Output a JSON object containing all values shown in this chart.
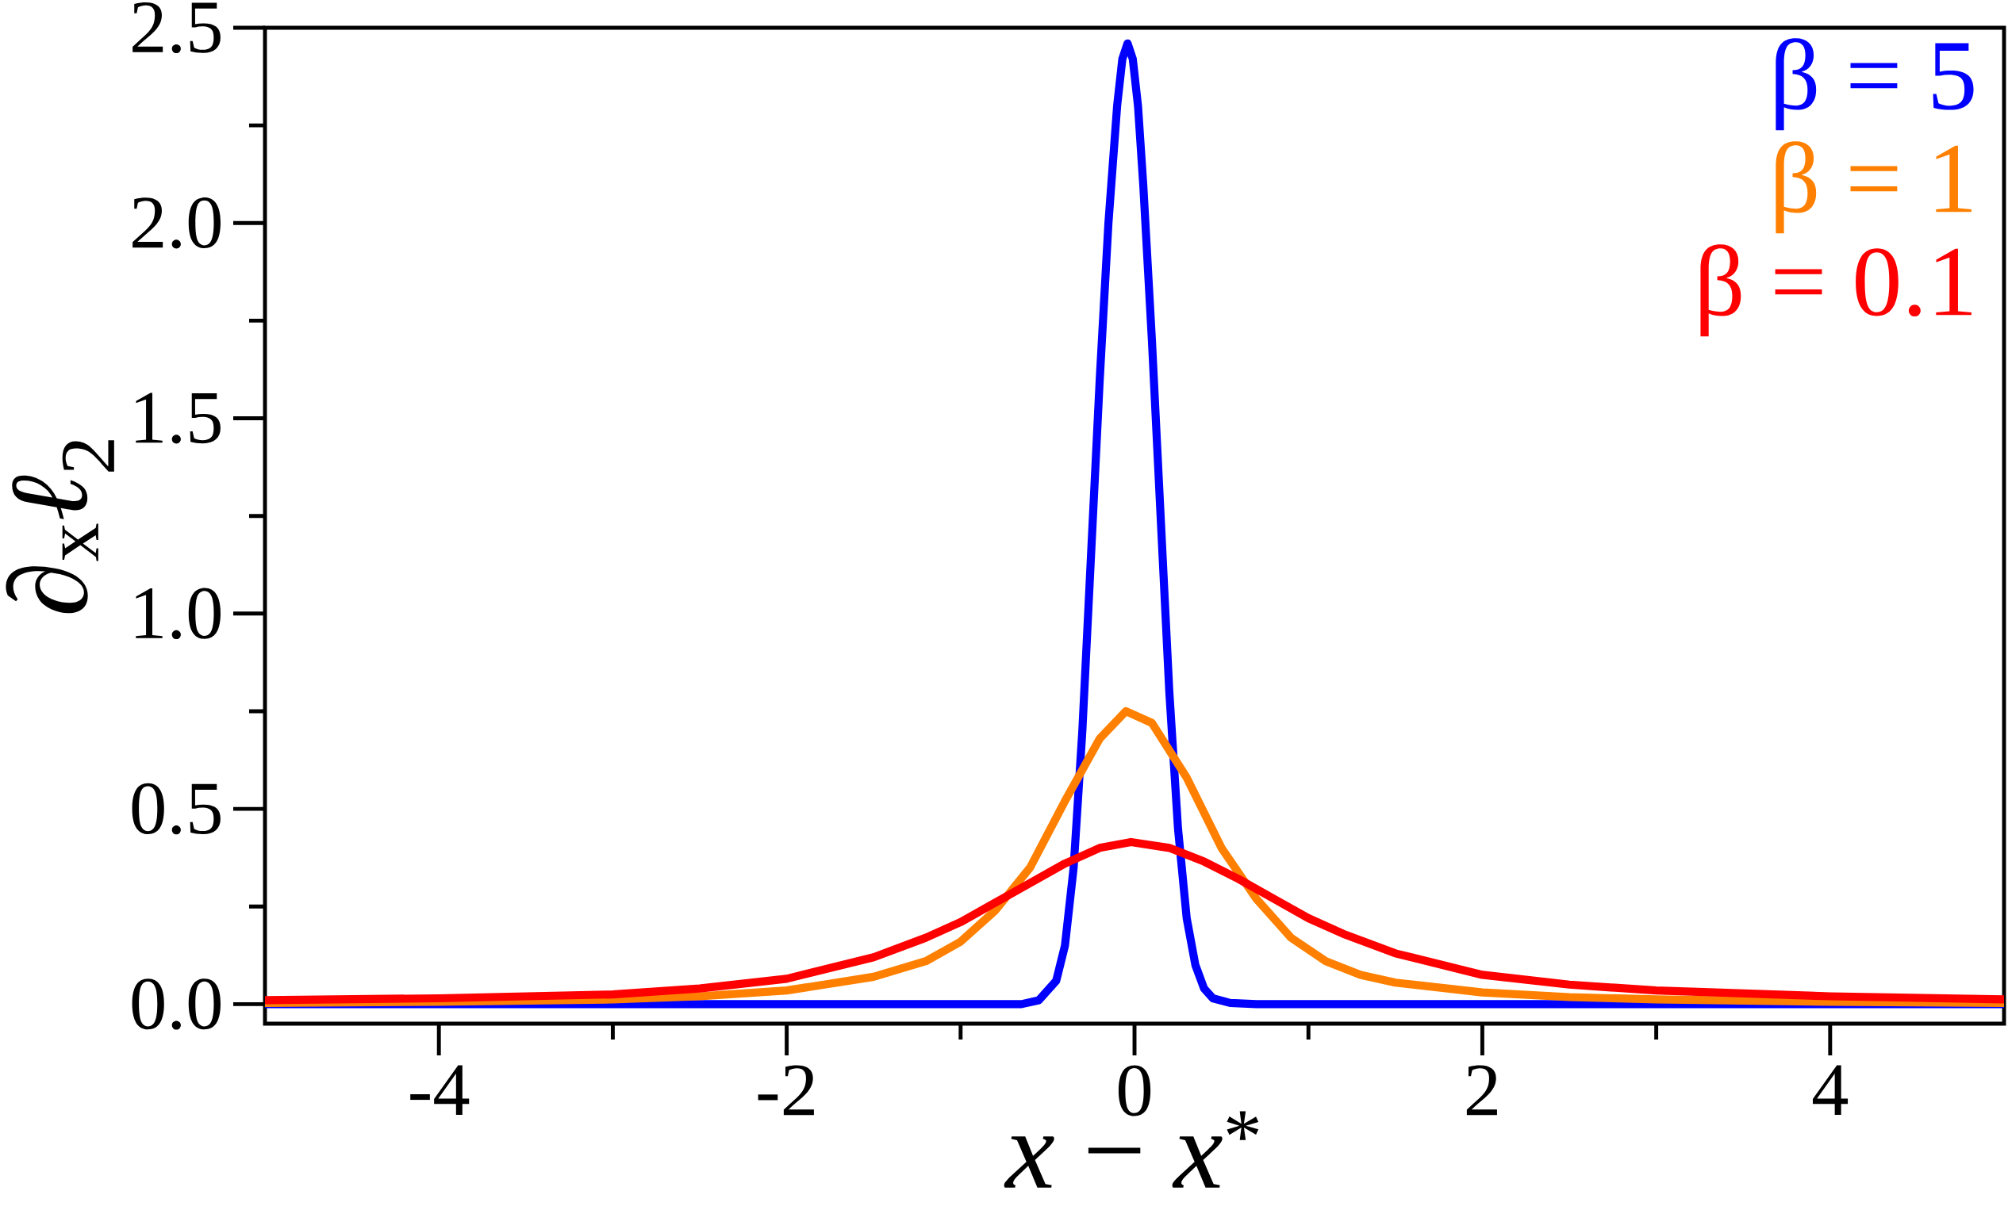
{
  "chart_data": {
    "type": "line",
    "xlabel": "*x* − *x*$^{*}$",
    "ylabel": "∂$_{x}$*ℓ*$_{2}$",
    "xlim": [
      -5,
      5
    ],
    "ylim": [
      -0.05,
      2.5
    ],
    "xticks": [
      -4,
      -2,
      0,
      2,
      4
    ],
    "yticks": [
      {
        "value": 0,
        "label": "0.0"
      },
      {
        "value": 0.5,
        "label": "0.5"
      },
      {
        "value": 1,
        "label": "1.0"
      },
      {
        "value": 1.5,
        "label": "1.5"
      },
      {
        "value": 2,
        "label": "2.0"
      },
      {
        "value": 2.5,
        "label": "2.5"
      }
    ],
    "legend": "top right",
    "line_style": "solid",
    "series": [
      {
        "name": "β = 5",
        "color": "#0000ff",
        "x": [
          -5,
          -1,
          -0.65,
          -0.55,
          -0.45,
          -0.4,
          -0.35,
          -0.3,
          -0.25,
          -0.2,
          -0.15,
          -0.1,
          -0.07,
          -0.04,
          -0.01,
          0.02,
          0.05,
          0.1,
          0.15,
          0.2,
          0.25,
          0.3,
          0.35,
          0.4,
          0.45,
          0.55,
          0.7,
          1,
          5
        ],
        "values": [
          0,
          0,
          0,
          0.01,
          0.06,
          0.15,
          0.35,
          0.7,
          1.15,
          1.6,
          2.0,
          2.3,
          2.42,
          2.46,
          2.42,
          2.3,
          2.1,
          1.7,
          1.25,
          0.8,
          0.45,
          0.22,
          0.1,
          0.04,
          0.015,
          0.003,
          0,
          0,
          0
        ]
      },
      {
        "name": "β = 1",
        "color": "#ff8000",
        "x": [
          -5,
          -4,
          -3,
          -2.5,
          -2,
          -1.5,
          -1.2,
          -1,
          -0.8,
          -0.6,
          -0.4,
          -0.2,
          -0.05,
          0.1,
          0.3,
          0.5,
          0.7,
          0.9,
          1.1,
          1.3,
          1.5,
          2,
          2.5,
          3,
          4,
          5
        ],
        "values": [
          0.003,
          0.006,
          0.012,
          0.02,
          0.035,
          0.07,
          0.11,
          0.16,
          0.24,
          0.35,
          0.52,
          0.68,
          0.75,
          0.72,
          0.58,
          0.4,
          0.27,
          0.17,
          0.11,
          0.075,
          0.055,
          0.03,
          0.018,
          0.012,
          0.006,
          0.003
        ]
      },
      {
        "name": "β = 0.1",
        "color": "#ff0000",
        "x": [
          -5,
          -4,
          -3,
          -2.5,
          -2,
          -1.5,
          -1.2,
          -1,
          -0.8,
          -0.6,
          -0.4,
          -0.2,
          -0.02,
          0.2,
          0.4,
          0.6,
          0.8,
          1,
          1.2,
          1.5,
          2,
          2.5,
          3,
          4,
          5
        ],
        "values": [
          0.01,
          0.015,
          0.025,
          0.04,
          0.065,
          0.12,
          0.17,
          0.21,
          0.26,
          0.31,
          0.36,
          0.4,
          0.415,
          0.4,
          0.365,
          0.32,
          0.27,
          0.22,
          0.18,
          0.13,
          0.075,
          0.05,
          0.035,
          0.02,
          0.012
        ]
      }
    ]
  }
}
